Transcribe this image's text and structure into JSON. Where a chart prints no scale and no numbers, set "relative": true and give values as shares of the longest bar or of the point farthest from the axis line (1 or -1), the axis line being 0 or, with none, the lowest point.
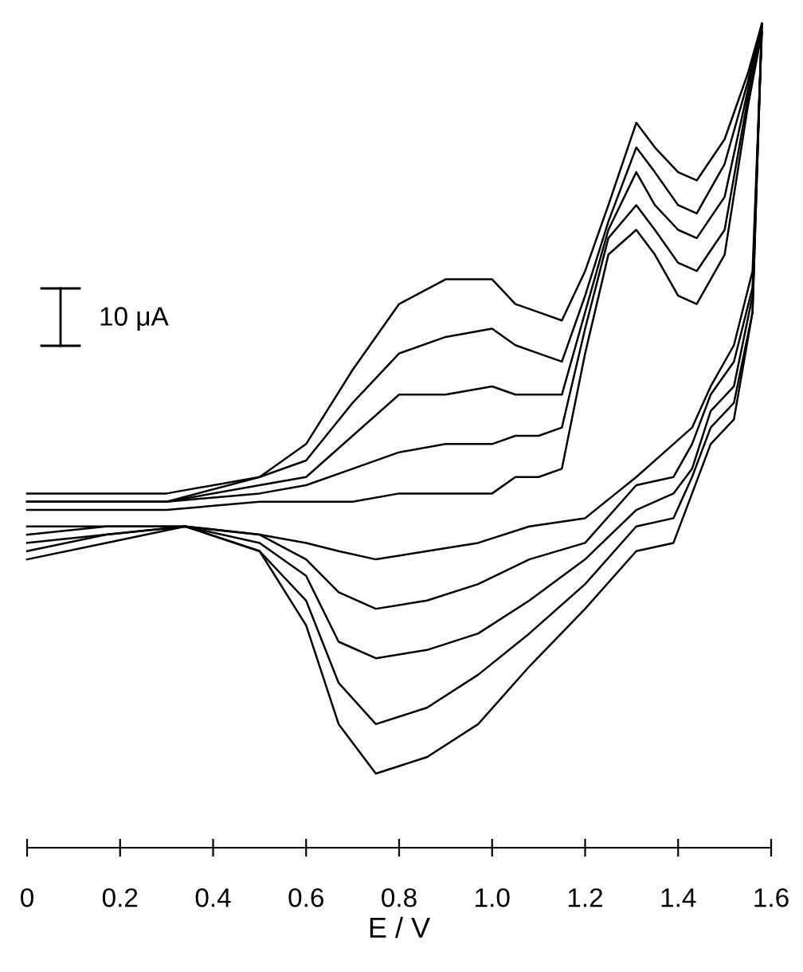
{
  "chart_data": {
    "type": "line",
    "relative": true,
    "xlabel": "E / V",
    "annotations": [
      "10 μA"
    ],
    "xlim": [
      0,
      1.6
    ],
    "xticks": [
      0,
      0.2,
      0.4,
      0.6,
      0.8,
      {
        "value": 1,
        "label": "1.0"
      },
      1.2,
      1.4,
      1.6
    ],
    "marker": "none",
    "line_style": "solid",
    "tick_labels": "x",
    "series": [
      {
        "color": "#000000",
        "x": [
          0,
          0.3,
          0.5,
          0.6,
          0.7,
          0.8,
          0.9,
          1.0,
          1.05,
          1.1,
          1.15,
          1.2,
          1.25,
          1.31,
          1.35,
          1.4,
          1.44,
          1.5,
          1.55,
          1.58
        ],
        "values": [
          0.41,
          0.41,
          0.42,
          0.42,
          0.42,
          0.43,
          0.43,
          0.43,
          0.45,
          0.45,
          0.46,
          0.6,
          0.72,
          0.75,
          0.72,
          0.67,
          0.66,
          0.72,
          0.9,
          0.99
        ]
      },
      {
        "color": "#000000",
        "x": [
          0,
          0.3,
          0.5,
          0.6,
          0.7,
          0.8,
          0.9,
          1.0,
          1.05,
          1.1,
          1.15,
          1.2,
          1.25,
          1.31,
          1.35,
          1.4,
          1.44,
          1.5,
          1.55,
          1.58
        ],
        "values": [
          0.42,
          0.42,
          0.43,
          0.44,
          0.46,
          0.48,
          0.49,
          0.49,
          0.5,
          0.5,
          0.51,
          0.63,
          0.74,
          0.78,
          0.75,
          0.71,
          0.7,
          0.75,
          0.91,
          0.99
        ]
      },
      {
        "color": "#000000",
        "x": [
          0,
          0.3,
          0.5,
          0.6,
          0.7,
          0.8,
          0.9,
          1.0,
          1.05,
          1.1,
          1.15,
          1.2,
          1.25,
          1.31,
          1.35,
          1.4,
          1.44,
          1.5,
          1.55,
          1.58
        ],
        "values": [
          0.42,
          0.42,
          0.44,
          0.45,
          0.5,
          0.55,
          0.55,
          0.56,
          0.55,
          0.55,
          0.55,
          0.65,
          0.75,
          0.82,
          0.78,
          0.75,
          0.74,
          0.79,
          0.92,
          1.0
        ]
      },
      {
        "color": "#000000",
        "x": [
          0,
          0.3,
          0.5,
          0.6,
          0.7,
          0.8,
          0.9,
          1.0,
          1.05,
          1.1,
          1.15,
          1.2,
          1.25,
          1.31,
          1.35,
          1.4,
          1.44,
          1.5,
          1.55,
          1.58
        ],
        "values": [
          0.42,
          0.42,
          0.45,
          0.47,
          0.54,
          0.6,
          0.62,
          0.63,
          0.61,
          0.6,
          0.59,
          0.67,
          0.76,
          0.85,
          0.82,
          0.78,
          0.77,
          0.83,
          0.93,
          1.0
        ]
      },
      {
        "color": "#000000",
        "x": [
          0,
          0.3,
          0.5,
          0.6,
          0.7,
          0.8,
          0.9,
          1.0,
          1.05,
          1.1,
          1.15,
          1.2,
          1.25,
          1.31,
          1.35,
          1.4,
          1.44,
          1.5,
          1.55,
          1.58
        ],
        "values": [
          0.43,
          0.43,
          0.45,
          0.49,
          0.58,
          0.66,
          0.69,
          0.69,
          0.66,
          0.65,
          0.64,
          0.7,
          0.78,
          0.88,
          0.85,
          0.82,
          0.81,
          0.86,
          0.94,
          1.0
        ]
      },
      {
        "color": "#000000",
        "x": [
          1.58,
          1.56,
          1.52,
          1.47,
          1.43,
          1.39,
          1.31,
          1.2,
          1.08,
          0.97,
          0.86,
          0.75,
          0.67,
          0.6,
          0.5,
          0.34,
          0.17,
          0
        ],
        "values": [
          0.99,
          0.7,
          0.61,
          0.56,
          0.51,
          0.49,
          0.45,
          0.4,
          0.39,
          0.37,
          0.36,
          0.35,
          0.36,
          0.37,
          0.38,
          0.39,
          0.39,
          0.39
        ]
      },
      {
        "color": "#000000",
        "x": [
          1.58,
          1.56,
          1.52,
          1.47,
          1.43,
          1.39,
          1.31,
          1.2,
          1.08,
          0.97,
          0.86,
          0.75,
          0.67,
          0.6,
          0.5,
          0.34,
          0.17,
          0
        ],
        "values": [
          0.99,
          0.68,
          0.59,
          0.55,
          0.49,
          0.45,
          0.44,
          0.37,
          0.35,
          0.32,
          0.3,
          0.29,
          0.31,
          0.35,
          0.38,
          0.39,
          0.39,
          0.38
        ]
      },
      {
        "color": "#000000",
        "x": [
          1.58,
          1.56,
          1.52,
          1.47,
          1.43,
          1.39,
          1.31,
          1.2,
          1.08,
          0.97,
          0.86,
          0.75,
          0.67,
          0.6,
          0.5,
          0.34,
          0.17,
          0
        ],
        "values": [
          1.0,
          0.67,
          0.56,
          0.53,
          0.46,
          0.43,
          0.41,
          0.35,
          0.3,
          0.26,
          0.24,
          0.23,
          0.25,
          0.33,
          0.37,
          0.39,
          0.38,
          0.37
        ]
      },
      {
        "color": "#000000",
        "x": [
          1.58,
          1.56,
          1.52,
          1.47,
          1.43,
          1.39,
          1.31,
          1.2,
          1.08,
          0.97,
          0.86,
          0.75,
          0.67,
          0.6,
          0.5,
          0.34,
          0.17,
          0
        ],
        "values": [
          1.0,
          0.65,
          0.54,
          0.51,
          0.45,
          0.4,
          0.39,
          0.32,
          0.26,
          0.21,
          0.17,
          0.15,
          0.2,
          0.3,
          0.36,
          0.39,
          0.38,
          0.36
        ]
      },
      {
        "color": "#000000",
        "x": [
          1.58,
          1.56,
          1.52,
          1.47,
          1.43,
          1.39,
          1.31,
          1.2,
          1.08,
          0.97,
          0.86,
          0.75,
          0.67,
          0.6,
          0.5,
          0.34,
          0.17,
          0
        ],
        "values": [
          1.0,
          0.65,
          0.52,
          0.49,
          0.43,
          0.37,
          0.36,
          0.29,
          0.22,
          0.15,
          0.11,
          0.09,
          0.15,
          0.27,
          0.36,
          0.39,
          0.37,
          0.35
        ]
      }
    ]
  }
}
